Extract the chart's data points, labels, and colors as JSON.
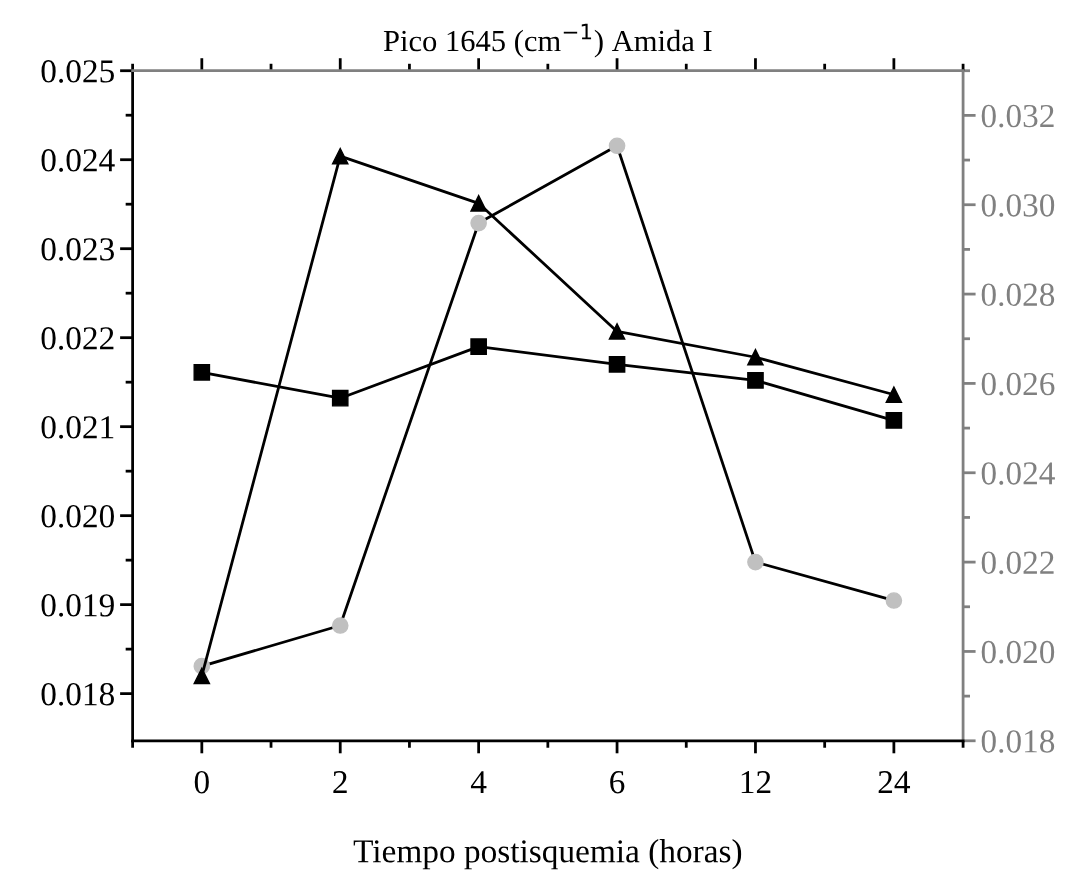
{
  "chart_data": {
    "type": "line",
    "title": "Pico 1645 (cm$^{−1}$) Amida I",
    "xlabel": "Tiempo postisquemia (horas)",
    "categories": [
      "0",
      "2",
      "4",
      "6",
      "12",
      "24"
    ],
    "series": [
      {
        "color": "#000000",
        "marker": "square",
        "values": [
          0.02161,
          0.02132,
          0.0219,
          0.0217,
          0.02152,
          0.02107
        ]
      },
      {
        "color": "#000000",
        "marker": "triangle",
        "values": [
          0.0182,
          0.02404,
          0.02351,
          0.02207,
          0.02178,
          0.02136
        ]
      },
      {
        "color": "#c0c0c0",
        "marker": "circle",
        "axis": "y2",
        "values": [
          0.01967,
          0.02058,
          0.02959,
          0.03132,
          0.022,
          0.02114
        ]
      }
    ],
    "ylim": [
      0.01747,
      0.025
    ],
    "yticks": [
      {
        "value": 0.018,
        "label": "0.018"
      },
      {
        "value": 0.019,
        "label": "0.019"
      },
      {
        "value": 0.02,
        "label": "0.020"
      },
      {
        "value": 0.021,
        "label": "0.021"
      },
      {
        "value": 0.022,
        "label": "0.022"
      },
      {
        "value": 0.023,
        "label": "0.023"
      },
      {
        "value": 0.024,
        "label": "0.024"
      },
      {
        "value": 0.025,
        "label": "0.025"
      }
    ],
    "y2lim": [
      0.018,
      0.033
    ],
    "y2ticks": [
      {
        "value": 0.018,
        "label": "0.018"
      },
      {
        "value": 0.02,
        "label": "0.020"
      },
      {
        "value": 0.022,
        "label": "0.022"
      },
      {
        "value": 0.024,
        "label": "0.024"
      },
      {
        "value": 0.026,
        "label": "0.026"
      },
      {
        "value": 0.028,
        "label": "0.028"
      },
      {
        "value": 0.03,
        "label": "0.030"
      },
      {
        "value": 0.032,
        "label": "0.032"
      }
    ],
    "grid": false,
    "legend": false,
    "line_style": "solid"
  }
}
